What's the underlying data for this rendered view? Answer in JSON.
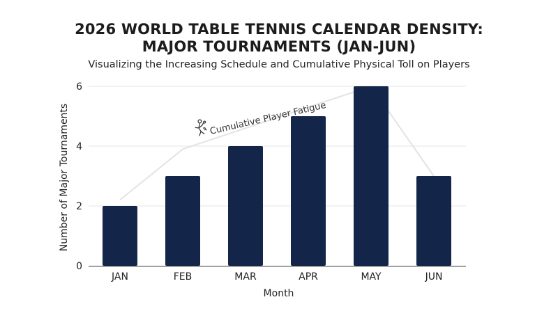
{
  "title_line1": "2026 WORLD TABLE TENNIS CALENDAR DENSITY:",
  "title_line2": "MAJOR TOURNAMENTS (JAN-JUN)",
  "subtitle": "Visualizing the Increasing Schedule and Cumulative Physical Toll on Players",
  "chart_data": {
    "type": "bar",
    "categories": [
      "JAN",
      "FEB",
      "MAR",
      "APR",
      "MAY",
      "JUN"
    ],
    "values": [
      2,
      3,
      4,
      5,
      6,
      3
    ],
    "xlabel": "Month",
    "ylabel": "Number of Major Tournaments",
    "ylim": [
      0,
      6
    ],
    "yticks": [
      0,
      2,
      4,
      6
    ],
    "grid": true,
    "bar_color": "#14254a",
    "trend": {
      "label": "Cumulative Player Fatigue",
      "icon": "tired-player-icon",
      "values": [
        2.2,
        3.9,
        4.6,
        5.3,
        6.0,
        3.0
      ],
      "color": "#e3e3e3"
    }
  }
}
